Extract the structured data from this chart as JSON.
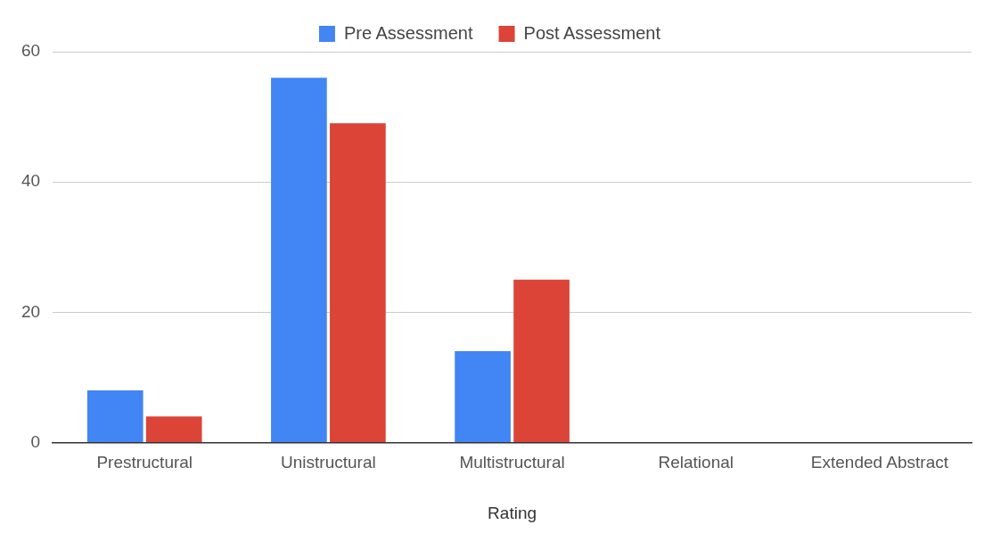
{
  "chart_data": {
    "type": "bar",
    "xlabel": "Rating",
    "categories": [
      "Prestructural",
      "Unistructural",
      "Multistructural",
      "Relational",
      "Extended Abstract"
    ],
    "series": [
      {
        "name": "Pre Assessment",
        "color": "#4285f4",
        "values": [
          8,
          56,
          14,
          0,
          0
        ]
      },
      {
        "name": "Post Assessment",
        "color": "#db4437",
        "values": [
          4,
          49,
          25,
          0,
          0
        ]
      }
    ],
    "ylim": [
      0,
      60
    ],
    "yticks": [
      0,
      20,
      40,
      60
    ],
    "grid": "y",
    "legend": "top"
  }
}
